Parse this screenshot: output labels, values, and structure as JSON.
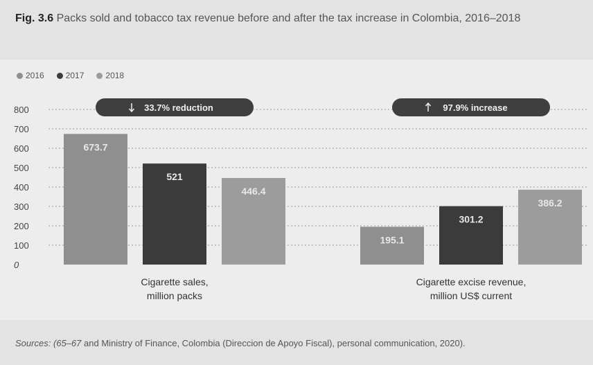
{
  "figure": {
    "label": "Fig. 3.6",
    "title": "Packs sold and tobacco tax revenue before and after the tax increase in Colombia, 2016–2018"
  },
  "sources": {
    "prefix": "Sources:",
    "refs": "(65–67",
    "text": "and Ministry of Finance, Colombia (Direccion de Apoyo Fiscal), personal communication, 2020)."
  },
  "chart_data": {
    "type": "bar",
    "title": "Packs sold and tobacco tax revenue before and after the tax increase in Colombia, 2016–2018",
    "categories": [
      "Cigarette sales, million packs",
      "Cigarette excise revenue, million US$ current"
    ],
    "category_lines": [
      [
        "Cigarette sales,",
        "million packs"
      ],
      [
        "Cigarette excise revenue,",
        "million US$ current"
      ]
    ],
    "series": [
      {
        "name": "2016",
        "color": "#8f8f8f",
        "values": [
          673.7,
          195.1
        ]
      },
      {
        "name": "2017",
        "color": "#3b3b3b",
        "values": [
          521,
          301.2
        ]
      },
      {
        "name": "2018",
        "color": "#9c9c9c",
        "values": [
          446.4,
          386.2
        ]
      }
    ],
    "ylim": [
      0,
      800
    ],
    "yticks": [
      0,
      100,
      200,
      300,
      400,
      500,
      600,
      700,
      800
    ],
    "grid": true,
    "legend": "top-left",
    "annotations": [
      {
        "category": 0,
        "text": "33.7% reduction",
        "arrow": "down"
      },
      {
        "category": 1,
        "text": "97.9% increase",
        "arrow": "up"
      }
    ]
  }
}
